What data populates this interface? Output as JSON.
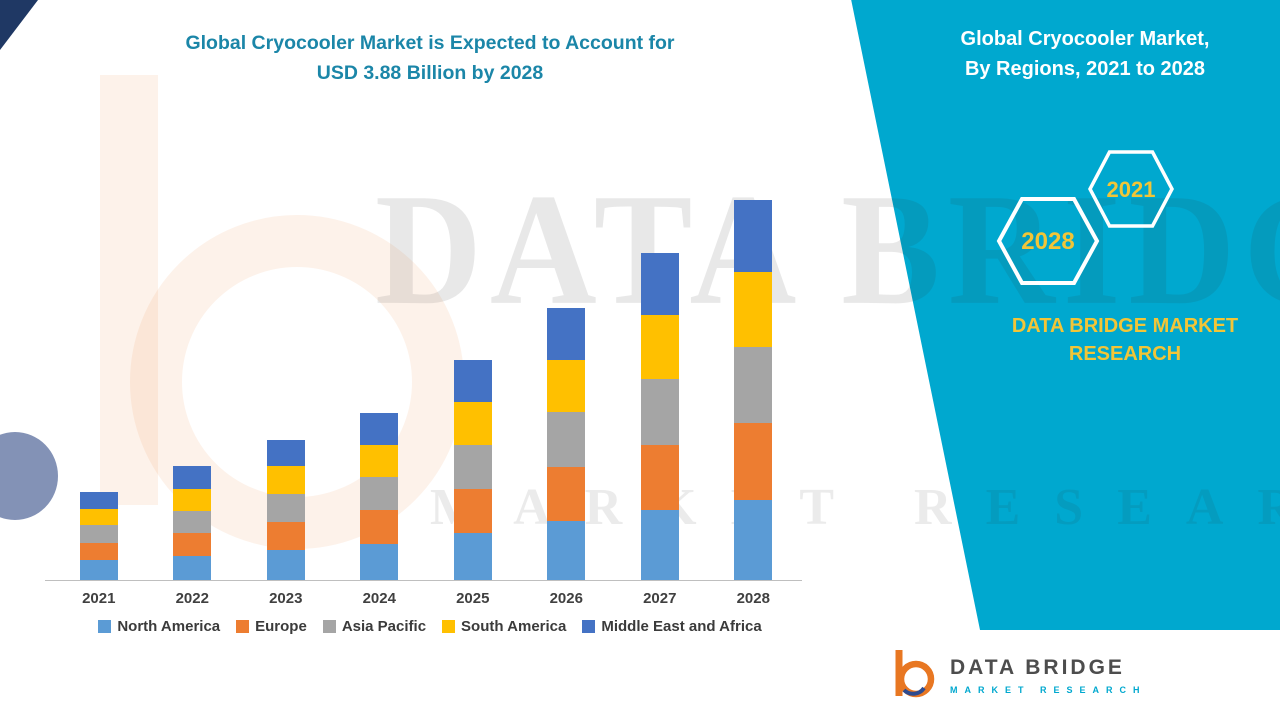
{
  "title": {
    "line1": "Global Cryocooler Market is Expected to Account for",
    "line2": "USD 3.88 Billion by 2028"
  },
  "side_panel": {
    "heading_line1": "Global Cryocooler Market,",
    "heading_line2": "By Regions, 2021 to 2028",
    "badge_back_label": "2028",
    "badge_front_label": "2021",
    "brand_line1": "DATA BRIDGE MARKET",
    "brand_line2": "RESEARCH",
    "panel_color": "#00A8CF",
    "accent_yellow": "#F2C537"
  },
  "watermark": {
    "big": "DATA BRIDGE",
    "small": "MARKET RESEARCH"
  },
  "footer_logo": {
    "name": "DATA BRIDGE",
    "sub": "MARKET RESEARCH"
  },
  "chart_data": {
    "type": "bar",
    "stacked": true,
    "title": "Global Cryocooler Market is Expected to Account for USD 3.88 Billion by 2028",
    "unit": "USD Billion",
    "xlabel": "",
    "ylabel": "",
    "ylim": [
      0,
      4
    ],
    "grid": false,
    "legend_position": "bottom",
    "categories": [
      "2021",
      "2022",
      "2023",
      "2024",
      "2025",
      "2026",
      "2027",
      "2028"
    ],
    "totals": [
      0.9,
      1.16,
      1.43,
      1.71,
      2.25,
      2.78,
      3.34,
      3.88
    ],
    "series": [
      {
        "name": "North America",
        "color": "#5B9BD5",
        "values": [
          0.2,
          0.25,
          0.31,
          0.37,
          0.48,
          0.6,
          0.71,
          0.82
        ]
      },
      {
        "name": "Europe",
        "color": "#ED7D31",
        "values": [
          0.18,
          0.23,
          0.28,
          0.34,
          0.45,
          0.55,
          0.67,
          0.78
        ]
      },
      {
        "name": "Asia Pacific",
        "color": "#A5A5A5",
        "values": [
          0.18,
          0.23,
          0.29,
          0.34,
          0.45,
          0.56,
          0.67,
          0.78
        ]
      },
      {
        "name": "South America",
        "color": "#FFC000",
        "values": [
          0.17,
          0.22,
          0.28,
          0.33,
          0.44,
          0.54,
          0.65,
          0.76
        ]
      },
      {
        "name": "Middle East and Africa",
        "color": "#4472C4",
        "values": [
          0.17,
          0.23,
          0.27,
          0.33,
          0.43,
          0.53,
          0.64,
          0.74
        ]
      }
    ]
  }
}
